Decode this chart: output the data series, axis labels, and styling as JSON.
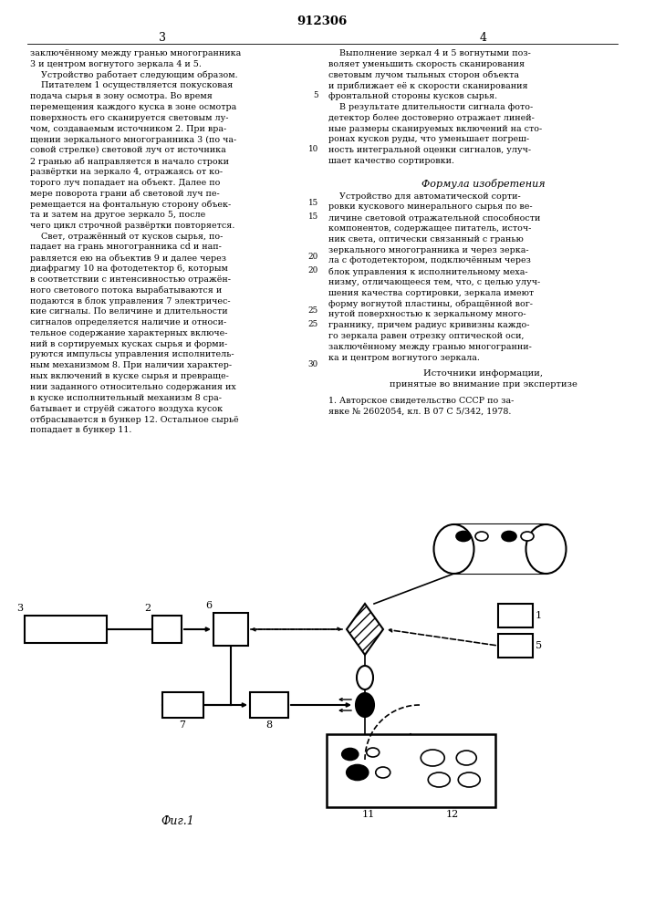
{
  "title": "912306",
  "page_number_left": "3",
  "page_number_right": "4",
  "fig_label": "Фиг.1",
  "bg_color": "#ffffff",
  "text_color": "#1a1a1a",
  "line_color": "#000000",
  "col1_lines": [
    "заключённому между гранью многогранника",
    "3 и центром вогнутого зеркала 4 и 5.",
    "    Устройство работает следующим образом.",
    "    Питателем 1 осуществляется покусковая",
    "подача сырья в зону осмотра. Во время",
    "перемещения каждого куска в зоне осмотра",
    "поверхность его сканируется световым лу-",
    "чом, создаваемым источником 2. При вра-",
    "щении зеркального многогранника 3 (по ча-",
    "совой стрелке) световой луч от источника",
    "2 гранью аб направляется в начало строки",
    "развёртки на зеркало 4, отражаясь от ко-",
    "торого луч попадает на объект. Далее по",
    "мере поворота грани аб световой луч пе-",
    "ремещается на фонтальную сторону объек-",
    "та и затем на другое зеркало 5, после",
    "чего цикл строчной развёртки повторяется.",
    "    Свет, отражённый от кусков сырья, по-",
    "падает на грань многогранника сd и нап-",
    "равляется ею на объектив 9 и далее через",
    "диафрагму 10 на фотодетектор 6, которым",
    "в соответствии с интенсивностью отражён-",
    "ного светового потока вырабатываются и",
    "подаются в блок управления 7 электричес-",
    "кие сигналы. По величине и длительности",
    "сигналов определяется наличие и относи-",
    "тельное содержание характерных включе-",
    "ний в сортируемых кусках сырья и форми-",
    "руются импульсы управления исполнитель-",
    "ным механизмом 8. При наличии характер-",
    "ных включений в куске сырья и превраще-",
    "нии заданного относительно содержания их",
    "в куске исполнительный механизм 8 сра-",
    "батывает и струёй сжатого воздуха кусок",
    "отбрасывается в бункер 12. Остальное сырьё",
    "попадает в бункер 11."
  ],
  "col2_lines": [
    "    Выполнение зеркал 4 и 5 вогнутыми поз-",
    "воляет уменьшить скорость сканирования",
    "световым лучом тыльных сторон объекта",
    "и приближает её к скорости сканирования",
    "фронтальной стороны кусков сырья.",
    "    В результате длительности сигнала фото-",
    "детектор более достоверно отражает линей-",
    "ные размеры сканируемых включений на сто-",
    "ронах кусков руды, что уменьшает погреш-",
    "ность интегральной оценки сигналов, улуч-",
    "шает качество сортировки."
  ],
  "formula_title": "Формула изобретения",
  "formula_lines": [
    "    Устройство для автоматической сорти-",
    "ровки кускового минерального сырья по ве-",
    "личине световой отражательной способности",
    "компонентов, содержащее питатель, источ-",
    "ник света, оптически связанный с гранью",
    "зеркального многогранника и через зерка-",
    "ла с фотодетектором, подключённым через",
    "блок управления к исполнительному меха-",
    "низму, отличающееся тем, что, с целью улуч-",
    "шения качества сортировки, зеркала имеют",
    "форму вогнутой пластины, обращённой вог-",
    "нутой поверхностью к зеркальному много-",
    "граннику, причем радиус кривизны каждо-",
    "го зеркала равен отрезку оптической оси,",
    "заключённому между гранью многогранни-",
    "ка и центром вогнутого зеркала."
  ],
  "sources_title1": "Источники информации,",
  "sources_title2": "принятые во внимание при экспертизе",
  "sources_line1": "1. Авторское свидетельство СССР по за-",
  "sources_line2": "явке № 2602054, кл. В 07 С 5/342, 1978.",
  "line_number_rows_col1": [
    4,
    9,
    14,
    19,
    24,
    29
  ],
  "line_numbers_col1": [
    "5",
    "10",
    "15",
    "20",
    "25",
    "30"
  ],
  "line_number_rows_col2": [
    4,
    9,
    14,
    19,
    24,
    29
  ],
  "line_numbers_col2": [
    "5",
    "10",
    "15",
    "20",
    "25",
    "30"
  ]
}
